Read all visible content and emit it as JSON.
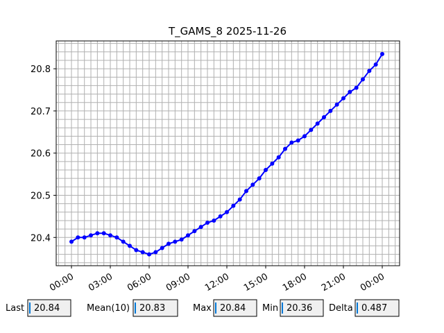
{
  "chart_data": {
    "type": "line",
    "title": "T_GAMS_8 2025-11-26",
    "x": [
      0,
      0.5,
      1,
      1.5,
      2,
      2.5,
      3,
      3.5,
      4,
      4.5,
      5,
      5.5,
      6,
      6.5,
      7,
      7.5,
      8,
      8.5,
      9,
      9.5,
      10,
      10.5,
      11,
      11.5,
      12,
      12.5,
      13,
      13.5,
      14,
      14.5,
      15,
      15.5,
      16,
      16.5,
      17,
      17.5,
      18,
      18.5,
      19,
      19.5,
      20,
      20.5,
      21,
      21.5,
      22,
      22.5,
      23,
      23.5,
      24
    ],
    "series": [
      {
        "color": "#0000ff",
        "values": [
          20.39,
          20.4,
          20.4,
          20.405,
          20.41,
          20.41,
          20.405,
          20.4,
          20.39,
          20.38,
          20.37,
          20.365,
          20.36,
          20.365,
          20.375,
          20.385,
          20.39,
          20.395,
          20.405,
          20.415,
          20.425,
          20.435,
          20.44,
          20.45,
          20.46,
          20.475,
          20.49,
          20.51,
          20.525,
          20.54,
          20.56,
          20.575,
          20.59,
          20.61,
          20.625,
          20.63,
          20.64,
          20.655,
          20.67,
          20.685,
          20.7,
          20.715,
          20.73,
          20.745,
          20.755,
          20.775,
          20.795,
          20.81,
          20.835
        ]
      }
    ],
    "xlim": [
      -1.18,
      25.34
    ],
    "xticks": [
      {
        "value": 0,
        "label": "00:00"
      },
      {
        "value": 3,
        "label": "03:00"
      },
      {
        "value": 6,
        "label": "06:00"
      },
      {
        "value": 9,
        "label": "09:00"
      },
      {
        "value": 12,
        "label": "12:00"
      },
      {
        "value": 15,
        "label": "15:00"
      },
      {
        "value": 18,
        "label": "18:00"
      },
      {
        "value": 21,
        "label": "21:00"
      },
      {
        "value": 24,
        "label": "00:00"
      }
    ],
    "ylim": [
      20.333,
      20.866
    ],
    "yticks": [
      20.4,
      20.5,
      20.6,
      20.7,
      20.8
    ],
    "xminorticks": [
      -1,
      -0.5,
      0.5,
      1,
      1.5,
      2,
      2.5,
      3.5,
      4,
      4.5,
      5,
      5.5,
      6.5,
      7,
      7.5,
      8,
      8.5,
      9.5,
      10,
      10.5,
      11,
      11.5,
      12.5,
      13,
      13.5,
      14,
      14.5,
      15.5,
      16,
      16.5,
      17,
      17.5,
      18.5,
      19,
      19.5,
      20,
      20.5,
      21.5,
      22,
      22.5,
      23,
      23.5,
      24.5,
      25
    ],
    "yminorticks": [
      20.34,
      20.36,
      20.38,
      20.42,
      20.44,
      20.46,
      20.48,
      20.52,
      20.54,
      20.56,
      20.58,
      20.62,
      20.64,
      20.66,
      20.68,
      20.72,
      20.74,
      20.76,
      20.78,
      20.82,
      20.84,
      20.86
    ],
    "grid": true
  },
  "stats": [
    {
      "label": "Last",
      "value": "20.84"
    },
    {
      "label": "Mean(10)",
      "value": "20.83"
    },
    {
      "label": "Max",
      "value": "20.84"
    },
    {
      "label": "Min",
      "value": "20.36"
    },
    {
      "label": "Delta",
      "value": "0.487"
    }
  ]
}
